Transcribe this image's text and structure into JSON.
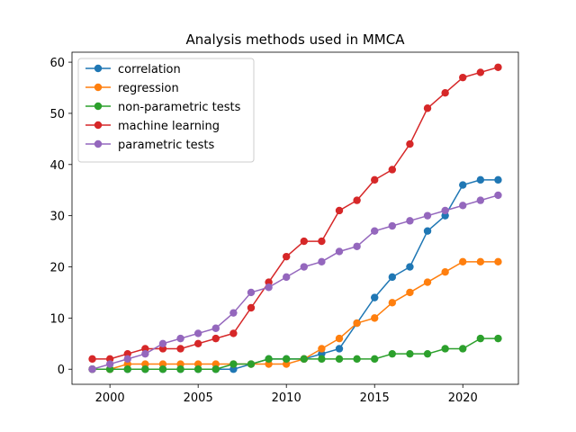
{
  "chart_data": {
    "type": "line",
    "title": "Analysis methods used in MMCA",
    "xlabel": "",
    "ylabel": "",
    "xlim": [
      1997.85,
      2023.15
    ],
    "ylim": [
      -2.95,
      61.95
    ],
    "xticks": [
      2000,
      2005,
      2010,
      2015,
      2020
    ],
    "yticks": [
      0,
      10,
      20,
      30,
      40,
      50,
      60
    ],
    "grid": false,
    "legend_position": "top-left",
    "x": [
      1999,
      2000,
      2001,
      2002,
      2003,
      2004,
      2005,
      2006,
      2007,
      2008,
      2009,
      2010,
      2011,
      2012,
      2013,
      2014,
      2015,
      2016,
      2017,
      2018,
      2019,
      2020,
      2021,
      2022
    ],
    "series": [
      {
        "name": "correlation",
        "color": "#1f77b4",
        "values": [
          0,
          0,
          0,
          0,
          0,
          0,
          0,
          0,
          0,
          1,
          2,
          2,
          2,
          3,
          4,
          9,
          14,
          18,
          20,
          27,
          30,
          36,
          37,
          37
        ]
      },
      {
        "name": "regression",
        "color": "#ff7f0e",
        "values": [
          0,
          0,
          1,
          1,
          1,
          1,
          1,
          1,
          1,
          1,
          1,
          1,
          2,
          4,
          6,
          9,
          10,
          13,
          15,
          17,
          19,
          21,
          21,
          21
        ]
      },
      {
        "name": "non-parametric tests",
        "color": "#2ca02c",
        "values": [
          0,
          0,
          0,
          0,
          0,
          0,
          0,
          0,
          1,
          1,
          2,
          2,
          2,
          2,
          2,
          2,
          2,
          3,
          3,
          3,
          4,
          4,
          6,
          6
        ]
      },
      {
        "name": "machine learning",
        "color": "#d62728",
        "values": [
          2,
          2,
          3,
          4,
          4,
          4,
          5,
          6,
          7,
          12,
          17,
          22,
          25,
          25,
          31,
          33,
          37,
          39,
          44,
          51,
          54,
          57,
          58,
          59
        ]
      },
      {
        "name": "parametric tests",
        "color": "#9467bd",
        "values": [
          0,
          1,
          2,
          3,
          5,
          6,
          7,
          8,
          11,
          15,
          16,
          18,
          20,
          21,
          23,
          24,
          27,
          28,
          29,
          30,
          31,
          32,
          33,
          34
        ]
      }
    ]
  }
}
